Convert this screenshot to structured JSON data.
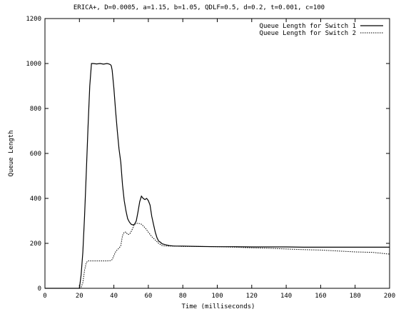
{
  "chart_data": {
    "type": "line",
    "title": "ERICA+, D=0.0005, a=1.15, b=1.05, QDLF=0.5, d=0.2, t=0.001, c=100",
    "xlabel": "Time (milliseconds)",
    "ylabel": "Queue Length",
    "xlim": [
      0,
      200
    ],
    "ylim": [
      0,
      1200
    ],
    "xticks": [
      0,
      20,
      40,
      60,
      80,
      100,
      120,
      140,
      160,
      180,
      200
    ],
    "yticks": [
      0,
      200,
      400,
      600,
      800,
      1000,
      1200
    ],
    "grid": false,
    "legend_position": "top-right",
    "series": [
      {
        "name": "Queue Length for Switch 1",
        "style": "solid",
        "color": "#000000",
        "x": [
          0,
          20,
          21,
          22,
          23,
          24,
          25,
          26,
          27,
          28,
          30,
          32,
          34,
          36,
          37,
          38,
          38.5,
          39,
          40,
          41,
          42,
          43,
          44,
          45,
          46,
          47,
          48,
          49,
          50,
          51,
          52,
          53,
          54,
          55,
          56,
          57,
          58,
          59,
          60,
          61,
          62,
          63,
          64,
          65,
          66,
          67,
          68,
          70,
          72,
          75,
          80,
          90,
          100,
          110,
          120,
          130,
          140,
          150,
          160,
          170,
          180,
          190,
          200
        ],
        "y": [
          0,
          0,
          60,
          160,
          320,
          520,
          720,
          900,
          1000,
          1000,
          998,
          1000,
          997,
          1000,
          998,
          995,
          990,
          970,
          890,
          790,
          700,
          620,
          560,
          460,
          390,
          345,
          310,
          295,
          285,
          282,
          285,
          300,
          340,
          385,
          410,
          400,
          395,
          400,
          390,
          370,
          320,
          285,
          250,
          225,
          210,
          205,
          198,
          194,
          190,
          188,
          188,
          186,
          185,
          185,
          184,
          184,
          184,
          183,
          183,
          183,
          183,
          183,
          183
        ]
      },
      {
        "name": "Queue Length for Switch 2",
        "style": "dotted",
        "color": "#000000",
        "x": [
          0,
          20,
          21,
          22,
          23,
          24,
          25,
          26,
          28,
          30,
          32,
          34,
          36,
          38,
          39,
          40,
          41,
          42,
          43,
          44,
          45,
          46,
          47,
          48,
          49,
          50,
          52,
          54,
          56,
          58,
          60,
          62,
          64,
          66,
          68,
          70,
          75,
          80,
          90,
          100,
          110,
          120,
          130,
          140,
          150,
          160,
          170,
          180,
          190,
          200
        ],
        "y": [
          0,
          0,
          5,
          25,
          80,
          115,
          122,
          122,
          122,
          122,
          122,
          122,
          122,
          123,
          128,
          145,
          162,
          172,
          178,
          190,
          235,
          250,
          250,
          240,
          240,
          252,
          285,
          290,
          285,
          270,
          250,
          230,
          215,
          200,
          190,
          188,
          188,
          186,
          186,
          185,
          183,
          180,
          178,
          175,
          172,
          170,
          166,
          162,
          160,
          152
        ]
      }
    ]
  }
}
